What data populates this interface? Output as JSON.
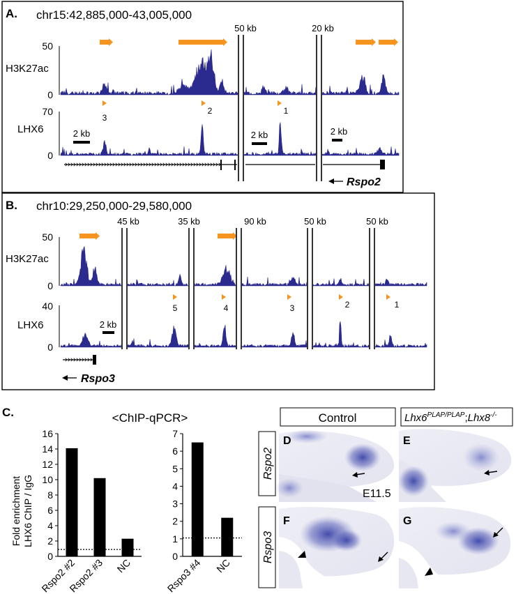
{
  "panelA": {
    "letter": "A.",
    "coords": "chr15:42,885,000-43,005,000",
    "tracks": [
      {
        "label": "H3K27ac",
        "max": "50",
        "min": "0"
      },
      {
        "label": "LHX6",
        "max": "70",
        "min": "0"
      }
    ],
    "gaps": [
      "50 kb",
      "20 kb"
    ],
    "scale": [
      "2 kb",
      "2 kb",
      "2 kb"
    ],
    "peaks": [
      "3",
      "2",
      "1"
    ],
    "gene": "Rspo2"
  },
  "panelB": {
    "letter": "B.",
    "coords": "chr10:29,250,000-29,580,000",
    "tracks": [
      {
        "label": "H3K27ac",
        "max": "50",
        "min": "0"
      },
      {
        "label": "LHX6",
        "max": "40",
        "min": "0"
      }
    ],
    "gaps": [
      "45 kb",
      "35 kb",
      "90 kb",
      "50 kb",
      "50 kb"
    ],
    "scale": "2 kb",
    "peaks": [
      "5",
      "4",
      "3",
      "2",
      "1"
    ],
    "gene": "Rspo3"
  },
  "panelC": {
    "letter": "C.",
    "title": "<ChIP-qPCR>",
    "ylabel_line1": "Fold enrichment",
    "ylabel_line2": "LHX6 ChIP / IgG",
    "colors": {
      "bar": "#000000",
      "track": "#2a2a8f",
      "region": "#f7941d"
    }
  },
  "chart_data": [
    {
      "type": "bar",
      "categories": [
        "Rspo2 #2",
        "Rspo2 #3",
        "NC"
      ],
      "values": [
        14.1,
        10.2,
        2.3
      ],
      "ylim": [
        0,
        16
      ],
      "yticks": [
        "0",
        "2",
        "4",
        "6",
        "8",
        "10",
        "12",
        "14",
        "16"
      ],
      "reference_line": 0.9
    },
    {
      "type": "bar",
      "categories": [
        "Rspo3 #4",
        "NC"
      ],
      "values": [
        6.5,
        2.2
      ],
      "ylim": [
        0,
        7
      ],
      "yticks": [
        "0",
        "1",
        "2",
        "3",
        "4",
        "5",
        "6",
        "7"
      ],
      "reference_line": 1.05
    }
  ],
  "panelISH": {
    "col_control": "Control",
    "col_mutant_gene1": "Lhx6",
    "col_mutant_sup1": "PLAP/PLAP",
    "col_mutant_sep": ";",
    "col_mutant_gene2": "Lhx8",
    "col_mutant_sup2": "-/-",
    "row1": "Rspo2",
    "row2": "Rspo3",
    "letters": [
      "D",
      "E",
      "F",
      "G"
    ],
    "stage": "E11.5"
  }
}
